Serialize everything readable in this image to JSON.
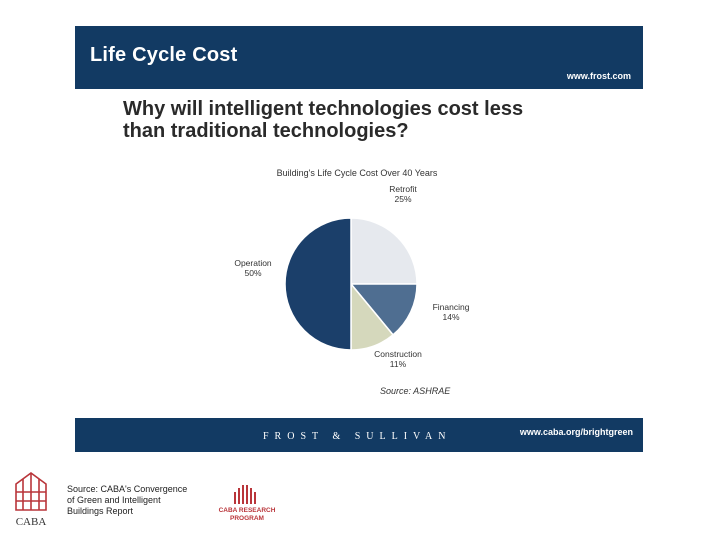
{
  "banner": {
    "title": "Life Cycle Cost",
    "url": "www.frost.com"
  },
  "headline": {
    "line1": "Why will intelligent technologies cost less",
    "line2": "than traditional technologies?"
  },
  "chart_data": {
    "type": "pie",
    "title": "Building's Life Cycle Cost Over 40 Years",
    "slices": [
      {
        "name": "Retrofit",
        "label": "25%",
        "value": 25,
        "color": "#e6e9ee"
      },
      {
        "name": "Financing",
        "label": "14%",
        "value": 14,
        "color": "#4f6e91"
      },
      {
        "name": "Construction",
        "label": "11%",
        "value": 11,
        "color": "#d5d8bc"
      },
      {
        "name": "Operation",
        "label": "50%",
        "value": 50,
        "color": "#1b3f6a"
      }
    ],
    "source": "Source: ASHRAE"
  },
  "bottom_banner": {
    "brand": "FROST & SULLIVAN",
    "url": "www.caba.org/brightgreen"
  },
  "footer": {
    "logo_text": "CABA",
    "source_lines": [
      "Source: CABA's Convergence",
      "of Green and Intelligent",
      "Buildings Report"
    ],
    "research_lines": [
      "CABA RESEARCH",
      "PROGRAM"
    ]
  },
  "colors": {
    "banner": "#123a63",
    "accent_red": "#b9353a"
  }
}
